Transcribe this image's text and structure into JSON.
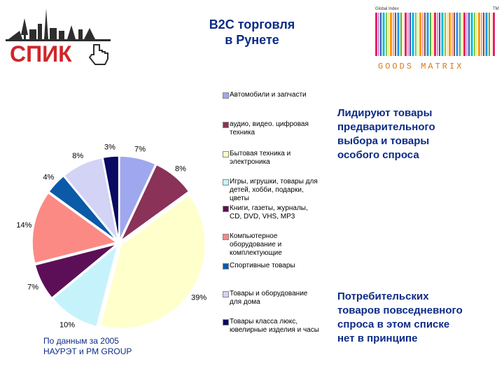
{
  "header": {
    "title_lines": [
      "B2C торговля",
      "в Рунете"
    ]
  },
  "logos": {
    "left_text": "СПИК",
    "right_top": "Global Index",
    "right_bottom": "GOODS MATRIX",
    "right_tm": "TM"
  },
  "colors": {
    "title": "#0b2b86",
    "brand_red": "#d0262a"
  },
  "notes": {
    "top_lines": [
      "Лидируют товары",
      "предварительного",
      "выбора и  товары",
      "особого спроса"
    ],
    "bottom_lines": [
      "Потребительских",
      "товаров повседневного",
      "спроса в этом списке",
      "нет в принципе"
    ]
  },
  "source": {
    "lines": [
      "По данным за 2005",
      "НАУРЭТ и PM GROUP"
    ]
  },
  "chart_data": {
    "type": "pie",
    "unit": "%",
    "slices": [
      {
        "label": "Автомобили и запчасти",
        "value": 7,
        "display": "7%",
        "color": "#9fa8ee"
      },
      {
        "label": "аудио, видео. цифровая техника",
        "value": 8,
        "display": "8%",
        "color": "#8a3258"
      },
      {
        "label": "Бытовая техника и электроника",
        "value": 39,
        "display": "39%",
        "color": "#ffffcc"
      },
      {
        "label": "Игры, игрушки, товары для детей, хобби, подарки, цветы",
        "value": 10,
        "display": "10%",
        "color": "#c6f3fb"
      },
      {
        "label": "Книги, газеты, журналы, CD, DVD, VHS, MP3",
        "value": 7,
        "display": "7%",
        "color": "#5c0f57"
      },
      {
        "label": "Компьютерное оборудование и комплектующие",
        "value": 14,
        "display": "14%",
        "color": "#fb8a85"
      },
      {
        "label": "Спортивные товары",
        "value": 4,
        "display": "4%",
        "color": "#0b5aa8"
      },
      {
        "label": "Товары и оборудование для дома",
        "value": 8,
        "display": "8%",
        "color": "#d3d3f5"
      },
      {
        "label": "Товары класса люкс, ювелирные изделия и часы",
        "value": 3,
        "display": "3%",
        "color": "#0a0a63"
      }
    ],
    "legend_lines": [
      [
        "Автомобили и запчасти"
      ],
      [
        "аудио, видео. цифровая",
        "техника"
      ],
      [
        "Бытовая техника и",
        "электроника"
      ],
      [
        "Игры, игрушки, товары для",
        "детей, хобби, подарки,",
        "цветы"
      ],
      [
        "Книги, газеты, журналы,",
        "CD, DVD, VHS, MP3"
      ],
      [
        "Компьютерное",
        "оборудование и",
        "комплектующие"
      ],
      [
        "Спортивные товары"
      ],
      [
        "Товары и оборудование",
        "для дома"
      ],
      [
        "Товары класса люкс,",
        "ювелирные изделия и часы"
      ]
    ],
    "legend_placement": "right"
  }
}
